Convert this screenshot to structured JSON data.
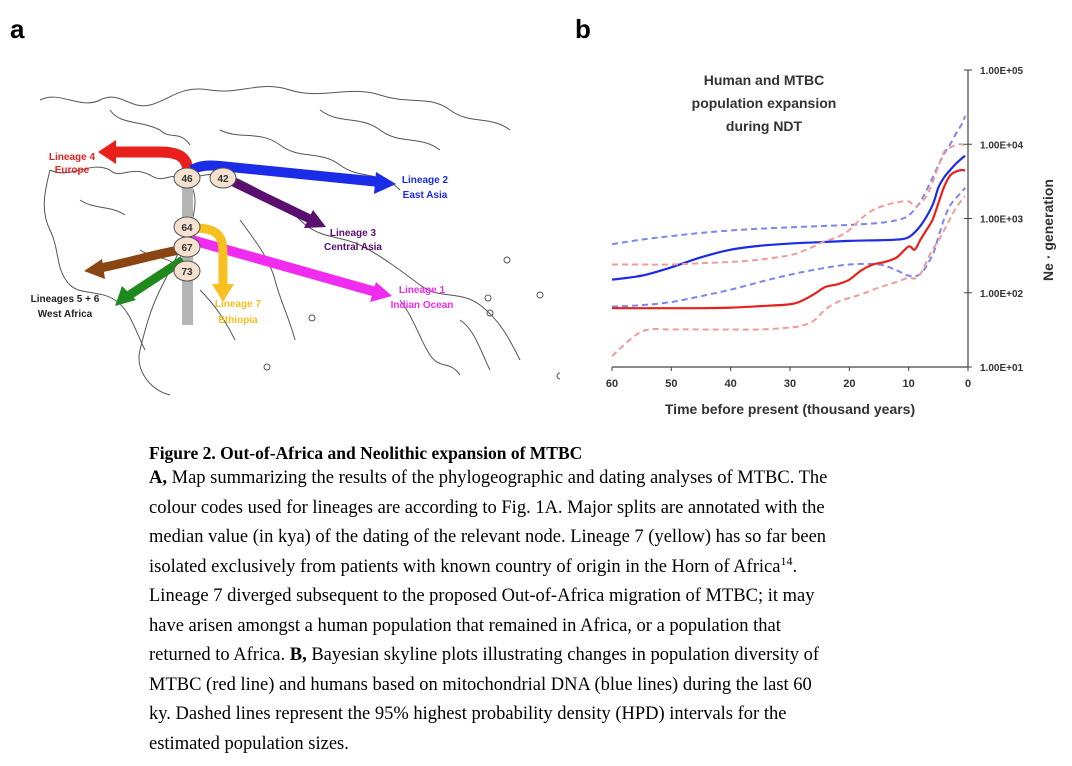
{
  "panel_a": {
    "letter": "a",
    "nodes": [
      "46",
      "42",
      "64",
      "67",
      "73"
    ],
    "labels": {
      "lineage4": [
        "Lineage 4",
        "Europe"
      ],
      "lineage2": [
        "Lineage 2",
        "East Asia"
      ],
      "lineage3": [
        "Lineage 3",
        "Central Asia"
      ],
      "lineage1": [
        "Lineage 1",
        "Indian Ocean"
      ],
      "lineage7": [
        "Lineage 7",
        "Ethiopia"
      ],
      "lineage56": [
        "Lineages 5 + 6",
        "West Africa"
      ]
    },
    "colors": {
      "lineage4": "#e8201c",
      "lineage2": "#1a2ce8",
      "lineage3": "#5a0f6e",
      "lineage1": "#f02cf0",
      "lineage7": "#f5c020",
      "lineage56_arrow": "#8a4512",
      "lineage56_arrow2": "#1e8a1e",
      "trunk": "#b5b5b5",
      "node_fill": "#f5e1cf"
    }
  },
  "panel_b": {
    "letter": "b",
    "chart_data": {
      "type": "line",
      "title": "Human and MTBC population expansion during NDT",
      "title_lines": [
        "Human and MTBC",
        "population expansion",
        "during NDT"
      ],
      "xlabel": "Time before present (thousand years)",
      "ylabel": "Ne · generation",
      "x_ticks": [
        "60",
        "50",
        "40",
        "30",
        "20",
        "10",
        "0"
      ],
      "y_ticks": [
        "1.00E+01",
        "1.00E+02",
        "1.00E+03",
        "1.00E+04",
        "1.00E+05"
      ],
      "xlim": [
        60,
        0
      ],
      "ylim": [
        10,
        100000
      ],
      "y_scale": "log",
      "grid": false,
      "series": [
        {
          "color": "#1a2ce8",
          "dash": false,
          "x": [
            60,
            55,
            50,
            45,
            40,
            35,
            30,
            25,
            20,
            15,
            12,
            10,
            8,
            6,
            5,
            4,
            3,
            2,
            1,
            0.5
          ],
          "y": [
            150,
            170,
            220,
            300,
            380,
            430,
            460,
            480,
            500,
            510,
            520,
            560,
            800,
            1500,
            2600,
            3600,
            4500,
            5500,
            6500,
            7000
          ]
        },
        {
          "color": "#7c85f0",
          "dash": true,
          "x": [
            60,
            55,
            50,
            45,
            40,
            35,
            30,
            25,
            20,
            15,
            12,
            10,
            8,
            6,
            5,
            4,
            3,
            2,
            1,
            0.5
          ],
          "y": [
            450,
            520,
            580,
            640,
            690,
            730,
            760,
            790,
            820,
            870,
            950,
            1100,
            1700,
            3500,
            5200,
            7500,
            10000,
            14000,
            19000,
            24000
          ]
        },
        {
          "color": "#7c85f0",
          "dash": true,
          "x": [
            60,
            55,
            50,
            45,
            40,
            35,
            30,
            25,
            20,
            15,
            12,
            10,
            8,
            6,
            5,
            4,
            3,
            2,
            1,
            0.5
          ],
          "y": [
            65,
            68,
            75,
            90,
            110,
            140,
            175,
            210,
            240,
            240,
            200,
            170,
            180,
            320,
            560,
            1000,
            1500,
            1900,
            2300,
            2600
          ]
        },
        {
          "color": "#e8201c",
          "dash": false,
          "x": [
            60,
            55,
            50,
            45,
            40,
            35,
            30,
            28,
            26,
            24,
            22,
            20,
            18,
            16,
            14,
            12,
            10,
            9,
            8,
            7,
            6,
            5,
            4,
            3,
            2,
            1,
            0.5
          ],
          "y": [
            62,
            62,
            62,
            62,
            63,
            66,
            70,
            78,
            95,
            120,
            130,
            150,
            200,
            240,
            260,
            300,
            420,
            380,
            520,
            700,
            950,
            1600,
            2700,
            3800,
            4300,
            4500,
            4400
          ]
        },
        {
          "color": "#f29b9b",
          "dash": true,
          "x": [
            60,
            55,
            50,
            45,
            40,
            35,
            30,
            28,
            26,
            24,
            22,
            20,
            18,
            16,
            14,
            12,
            10,
            9,
            8,
            7,
            6,
            5,
            4,
            3,
            2,
            1,
            0.5
          ],
          "y": [
            240,
            240,
            240,
            250,
            260,
            280,
            320,
            360,
            420,
            500,
            560,
            700,
            1000,
            1300,
            1500,
            1650,
            1700,
            1450,
            1600,
            2000,
            3000,
            5000,
            8000,
            9000,
            9800,
            10000,
            9500
          ]
        },
        {
          "color": "#f29b9b",
          "dash": true,
          "x": [
            60,
            55,
            50,
            45,
            40,
            35,
            30,
            28,
            26,
            24,
            22,
            20,
            18,
            16,
            14,
            12,
            10,
            9,
            8,
            7,
            6,
            5,
            4,
            3,
            2,
            1,
            0.5
          ],
          "y": [
            14,
            30,
            32,
            32,
            32,
            32,
            34,
            36,
            42,
            60,
            75,
            85,
            95,
            110,
            125,
            140,
            160,
            155,
            180,
            260,
            380,
            500,
            700,
            1000,
            1400,
            1800,
            2000
          ]
        }
      ]
    }
  },
  "caption": {
    "title": "Figure 2. Out-of-Africa and Neolithic expansion of MTBC",
    "lines": [
      {
        "bold": "A,",
        "text": " Map summarizing the results of the phylogeographic and dating analyses of MTBC. The"
      },
      {
        "text": "colour codes used for lineages are according to Fig. 1A. Major splits are annotated with the"
      },
      {
        "text": "median value (in kya) of the dating of the relevant node. Lineage 7 (yellow) has so far been"
      },
      {
        "text": "isolated exclusively from patients with known country of origin in the Horn of Africa",
        "sup": "14",
        "after": "."
      },
      {
        "text": "Lineage 7 diverged subsequent to the proposed Out-of-Africa migration of MTBC; it may"
      },
      {
        "text": "have arisen amongst a human population that remained in Africa, or a population that"
      },
      {
        "text": "returned to Africa. ",
        "bold_mid": "B,",
        "text2": " Bayesian skyline plots illustrating changes in population diversity of"
      },
      {
        "text": "MTBC (red line) and humans based on mitochondrial DNA (blue lines) during the last 60"
      },
      {
        "text": "ky. Dashed lines represent the 95% highest probability density (HPD) intervals for the"
      },
      {
        "text": "estimated population sizes."
      }
    ]
  }
}
